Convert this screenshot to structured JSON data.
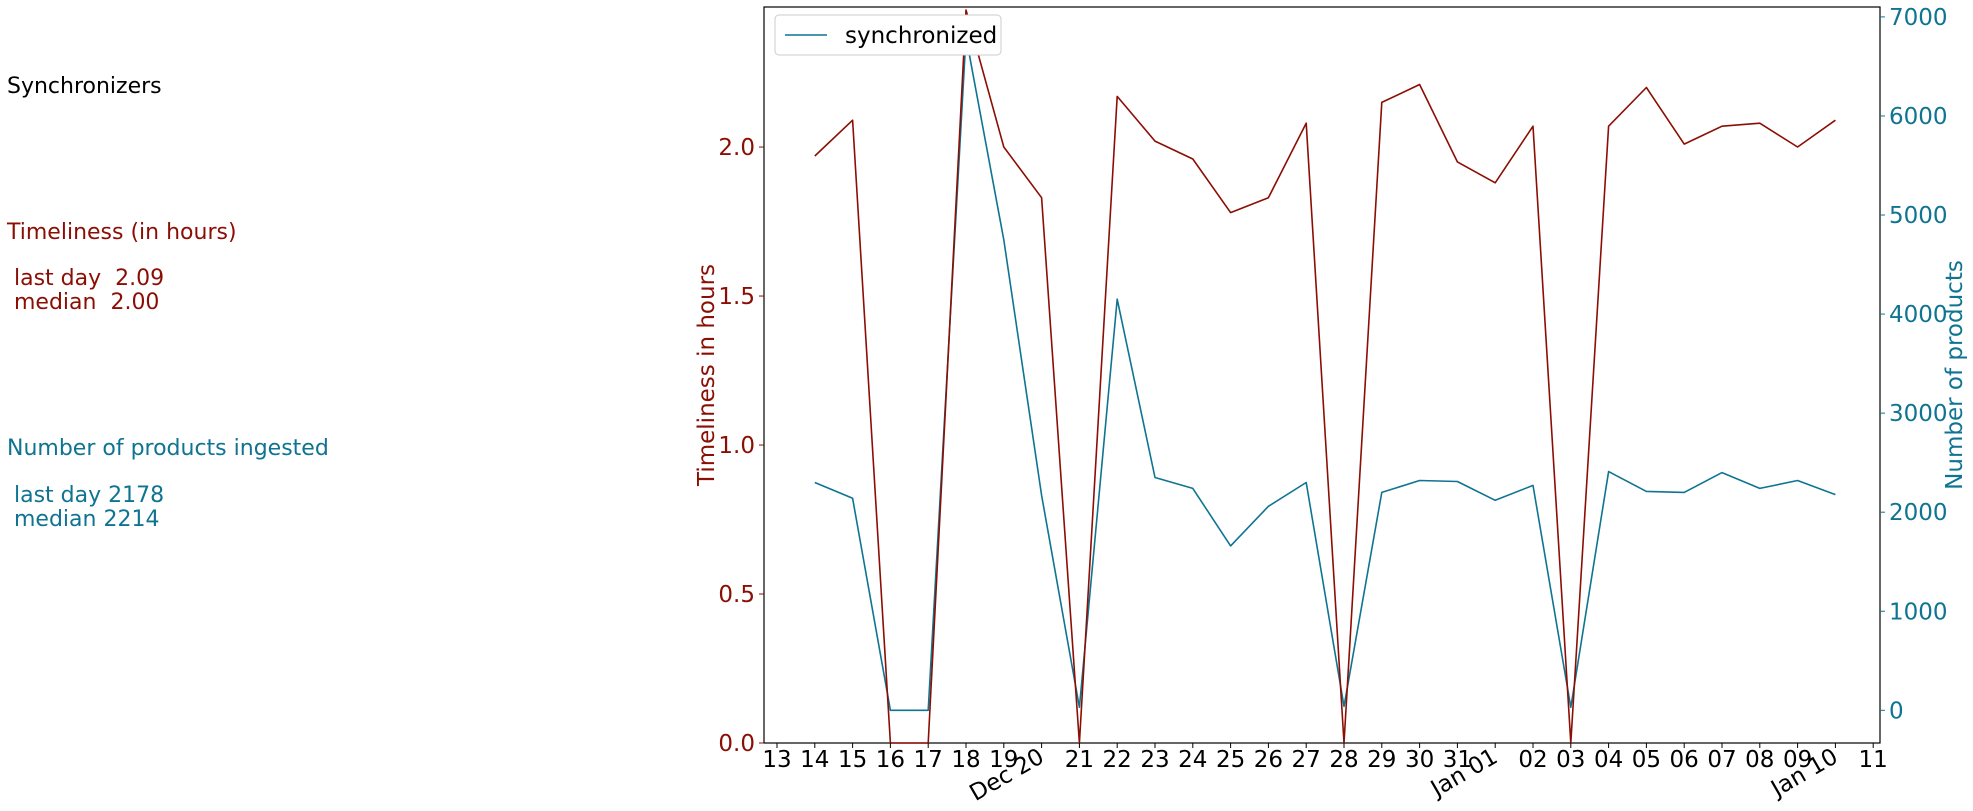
{
  "panel": {
    "title": "Synchronizers",
    "timeliness_heading": "Timeliness (in hours)",
    "timeliness_last_day": " last day  2.09",
    "timeliness_median": " median  2.00",
    "products_heading": "Number of products ingested",
    "products_last_day": " last day 2178",
    "products_median": " median 2214"
  },
  "colors": {
    "timeliness": "#8b0e04",
    "products": "#0f7491",
    "axis": "#000000"
  },
  "chart_data": {
    "type": "line",
    "x_tick_labels": [
      "13",
      "14",
      "15",
      "16",
      "17",
      "18",
      "19",
      "Dec 20",
      "21",
      "22",
      "23",
      "24",
      "25",
      "26",
      "27",
      "28",
      "29",
      "30",
      "31",
      "Jan 01",
      "02",
      "03",
      "04",
      "05",
      "06",
      "07",
      "08",
      "09",
      "Jan 10",
      "11"
    ],
    "x_domain": [
      "2024-12-13",
      "2025-01-11"
    ],
    "x_rotated_labels": [
      "Dec 20",
      "Jan 01",
      "Jan 10"
    ],
    "left_axis": {
      "label": "Timeliness in hours",
      "ylim": [
        0,
        2.47
      ],
      "ticks": [
        "0.0",
        "0.5",
        "1.0",
        "1.5",
        "2.0"
      ]
    },
    "right_axis": {
      "label": "Number of products",
      "ylim": [
        -330,
        7100
      ],
      "ticks": [
        "0",
        "1000",
        "2000",
        "3000",
        "4000",
        "5000",
        "6000",
        "7000"
      ]
    },
    "legend": {
      "position": "top-left",
      "entries": [
        "synchronized"
      ]
    },
    "grid": false,
    "series": [
      {
        "name": "synchronized",
        "axis": "right",
        "x": [
          "2024-12-14",
          "2024-12-15",
          "2024-12-16",
          "2024-12-17",
          "2024-12-18",
          "2024-12-19",
          "2024-12-20",
          "2024-12-21",
          "2024-12-22",
          "2024-12-23",
          "2024-12-24",
          "2024-12-25",
          "2024-12-26",
          "2024-12-27",
          "2024-12-28",
          "2024-12-29",
          "2024-12-30",
          "2024-12-31",
          "2025-01-01",
          "2025-01-02",
          "2025-01-03",
          "2025-01-04",
          "2025-01-05",
          "2025-01-06",
          "2025-01-07",
          "2025-01-08",
          "2025-01-09",
          "2025-01-10"
        ],
        "values": [
          2300,
          2140,
          0,
          0,
          6800,
          4750,
          2170,
          30,
          4150,
          2350,
          2240,
          1660,
          2060,
          2300,
          40,
          2200,
          2320,
          2310,
          2120,
          2270,
          30,
          2410,
          2210,
          2200,
          2400,
          2240,
          2320,
          2178
        ]
      },
      {
        "name": "timeliness",
        "axis": "left",
        "x": [
          "2024-12-14",
          "2024-12-15",
          "2024-12-16",
          "2024-12-17",
          "2024-12-18",
          "2024-12-19",
          "2024-12-20",
          "2024-12-21",
          "2024-12-22",
          "2024-12-23",
          "2024-12-24",
          "2024-12-25",
          "2024-12-26",
          "2024-12-27",
          "2024-12-28",
          "2024-12-29",
          "2024-12-30",
          "2024-12-31",
          "2025-01-01",
          "2025-01-02",
          "2025-01-03",
          "2025-01-04",
          "2025-01-05",
          "2025-01-06",
          "2025-01-07",
          "2025-01-08",
          "2025-01-09",
          "2025-01-10"
        ],
        "values": [
          1.97,
          2.09,
          0,
          0,
          2.46,
          2.0,
          1.83,
          0,
          2.17,
          2.02,
          1.96,
          1.78,
          1.83,
          2.08,
          0,
          2.15,
          2.21,
          1.95,
          1.88,
          2.07,
          0,
          2.07,
          2.2,
          2.01,
          2.07,
          2.08,
          2.0,
          2.09
        ]
      }
    ]
  }
}
